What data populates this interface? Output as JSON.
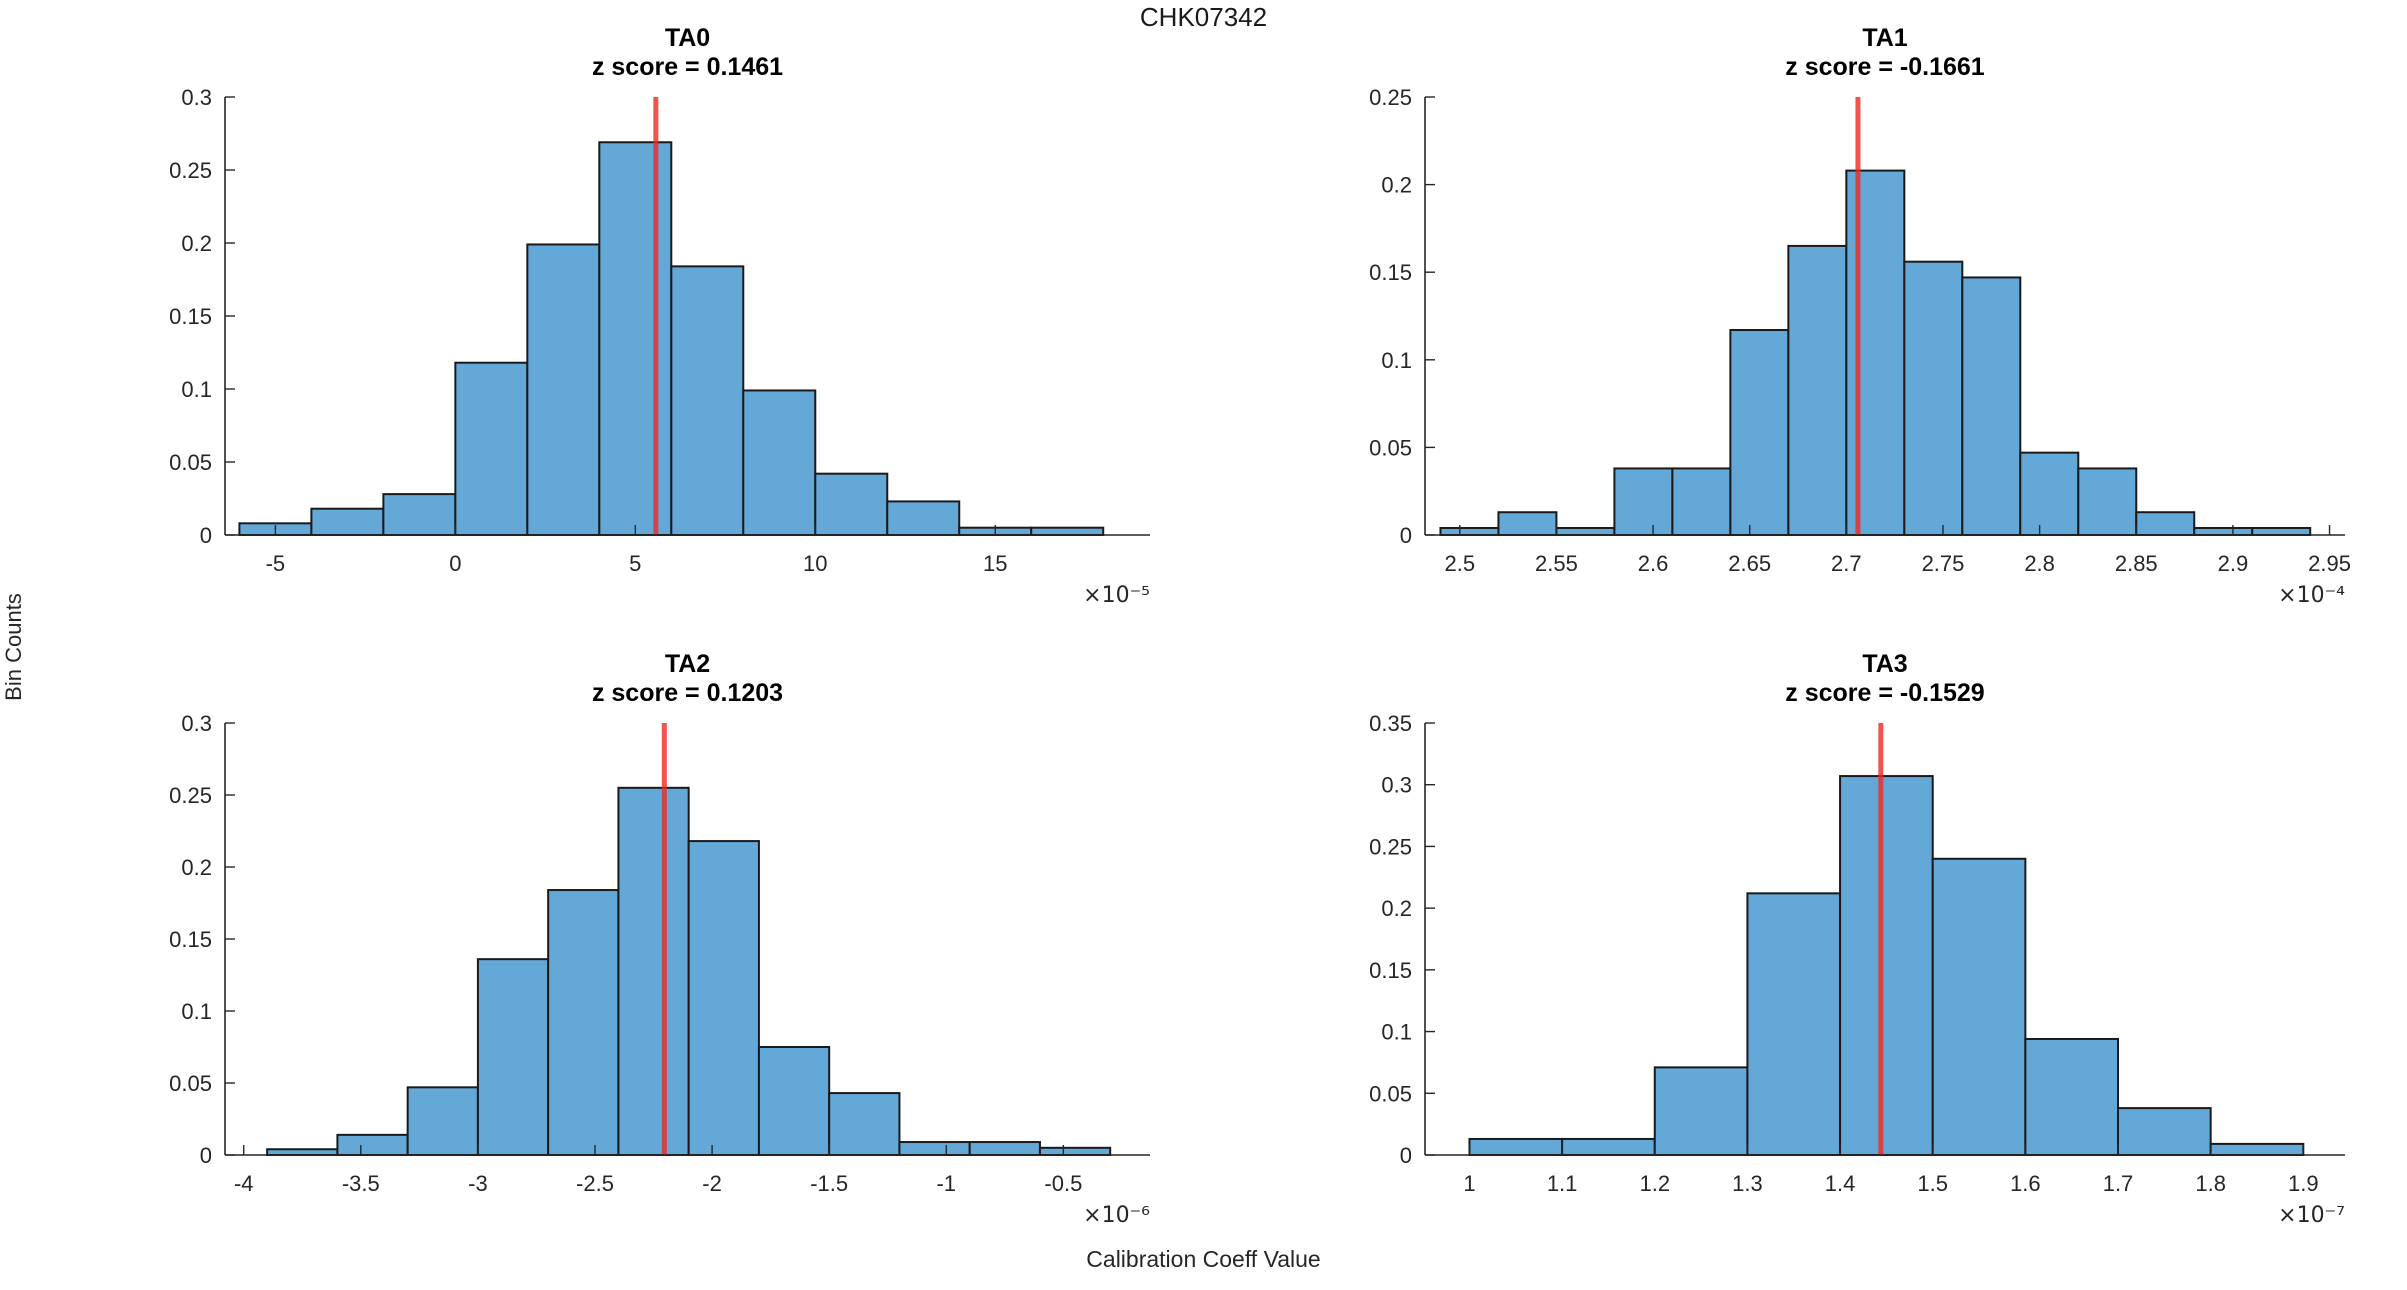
{
  "figure": {
    "title": "CHK07342",
    "xlabel": "Calibration Coeff Value",
    "ylabel": "Bin Counts",
    "background": "#ffffff",
    "colors": {
      "bar_fill": "#64A8D8",
      "bar_edge": "#1a1a1a",
      "marker_line": "#F02820",
      "axis_line": "#262626",
      "tick_text": "#262626",
      "title_text": "#000000"
    }
  },
  "chart_data": [
    {
      "type": "bar",
      "subtype": "histogram",
      "title": "TA0",
      "subtitle": "z score = 0.1461",
      "z_score": 0.1461,
      "exponent_label": "×10⁻⁵",
      "x_scale_exponent": -5,
      "bin_edges": [
        -6,
        -4,
        -2,
        0,
        2,
        4,
        6,
        8,
        10,
        12,
        14,
        16,
        18
      ],
      "values": [
        0.008,
        0.018,
        0.028,
        0.118,
        0.199,
        0.269,
        0.184,
        0.099,
        0.042,
        0.023,
        0.005,
        0.005
      ],
      "marker_x": 5.57,
      "xlim": [
        -6.4,
        19.3
      ],
      "ylim": [
        0,
        0.3
      ],
      "xticks": [
        -5,
        0,
        5,
        10,
        15
      ],
      "xtick_labels": [
        "-5",
        "0",
        "5",
        "10",
        "15"
      ],
      "yticks": [
        0,
        0.05,
        0.1,
        0.15,
        0.2,
        0.25,
        0.3
      ],
      "ytick_labels": [
        "0",
        "0.05",
        "0.1",
        "0.15",
        "0.2",
        "0.25",
        "0.3"
      ]
    },
    {
      "type": "bar",
      "subtype": "histogram",
      "title": "TA1",
      "subtitle": "z score = -0.1661",
      "z_score": -0.1661,
      "exponent_label": "×10⁻⁴",
      "x_scale_exponent": -4,
      "bin_edges": [
        2.49,
        2.52,
        2.55,
        2.58,
        2.61,
        2.64,
        2.67,
        2.7,
        2.73,
        2.76,
        2.79,
        2.82,
        2.85,
        2.88,
        2.91,
        2.94
      ],
      "values": [
        0.004,
        0.013,
        0.004,
        0.038,
        0.038,
        0.117,
        0.165,
        0.208,
        0.156,
        0.147,
        0.047,
        0.038,
        0.013,
        0.004,
        0.004
      ],
      "marker_x": 2.706,
      "xlim": [
        2.482,
        2.958
      ],
      "ylim": [
        0,
        0.25
      ],
      "xticks": [
        2.5,
        2.55,
        2.6,
        2.65,
        2.7,
        2.75,
        2.8,
        2.85,
        2.9,
        2.95
      ],
      "xtick_labels": [
        "2.5",
        "2.55",
        "2.6",
        "2.65",
        "2.7",
        "2.75",
        "2.8",
        "2.85",
        "2.9",
        "2.95"
      ],
      "yticks": [
        0,
        0.05,
        0.1,
        0.15,
        0.2,
        0.25
      ],
      "ytick_labels": [
        "0",
        "0.05",
        "0.1",
        "0.15",
        "0.2",
        "0.25"
      ]
    },
    {
      "type": "bar",
      "subtype": "histogram",
      "title": "TA2",
      "subtitle": "z score = 0.1203",
      "z_score": 0.1203,
      "exponent_label": "×10⁻⁶",
      "x_scale_exponent": -6,
      "bin_edges": [
        -3.9,
        -3.6,
        -3.3,
        -3.0,
        -2.7,
        -2.4,
        -2.1,
        -1.8,
        -1.5,
        -1.2,
        -0.9,
        -0.6,
        -0.3
      ],
      "values": [
        0.004,
        0.014,
        0.047,
        0.136,
        0.184,
        0.255,
        0.218,
        0.075,
        0.043,
        0.009,
        0.009,
        0.005
      ],
      "marker_x": -2.204,
      "xlim": [
        -4.08,
        -0.13
      ],
      "ylim": [
        0,
        0.3
      ],
      "xticks": [
        -4,
        -3.5,
        -3,
        -2.5,
        -2,
        -1.5,
        -1,
        -0.5
      ],
      "xtick_labels": [
        "-4",
        "-3.5",
        "-3",
        "-2.5",
        "-2",
        "-1.5",
        "-1",
        "-0.5"
      ],
      "yticks": [
        0,
        0.05,
        0.1,
        0.15,
        0.2,
        0.25,
        0.3
      ],
      "ytick_labels": [
        "0",
        "0.05",
        "0.1",
        "0.15",
        "0.2",
        "0.25",
        "0.3"
      ]
    },
    {
      "type": "bar",
      "subtype": "histogram",
      "title": "TA3",
      "subtitle": "z score = -0.1529",
      "z_score": -0.1529,
      "exponent_label": "×10⁻⁷",
      "x_scale_exponent": -7,
      "bin_edges": [
        1.0,
        1.1,
        1.2,
        1.3,
        1.4,
        1.5,
        1.6,
        1.7,
        1.8,
        1.9
      ],
      "values": [
        0.013,
        0.013,
        0.071,
        0.212,
        0.307,
        0.24,
        0.094,
        0.038,
        0.009
      ],
      "marker_x": 1.444,
      "xlim": [
        0.952,
        1.945
      ],
      "ylim": [
        0,
        0.35
      ],
      "xticks": [
        1,
        1.1,
        1.2,
        1.3,
        1.4,
        1.5,
        1.6,
        1.7,
        1.8,
        1.9
      ],
      "xtick_labels": [
        "1",
        "1.1",
        "1.2",
        "1.3",
        "1.4",
        "1.5",
        "1.6",
        "1.7",
        "1.8",
        "1.9"
      ],
      "yticks": [
        0,
        0.05,
        0.1,
        0.15,
        0.2,
        0.25,
        0.3,
        0.35
      ],
      "ytick_labels": [
        "0",
        "0.05",
        "0.1",
        "0.15",
        "0.2",
        "0.25",
        "0.3",
        "0.35"
      ]
    }
  ]
}
